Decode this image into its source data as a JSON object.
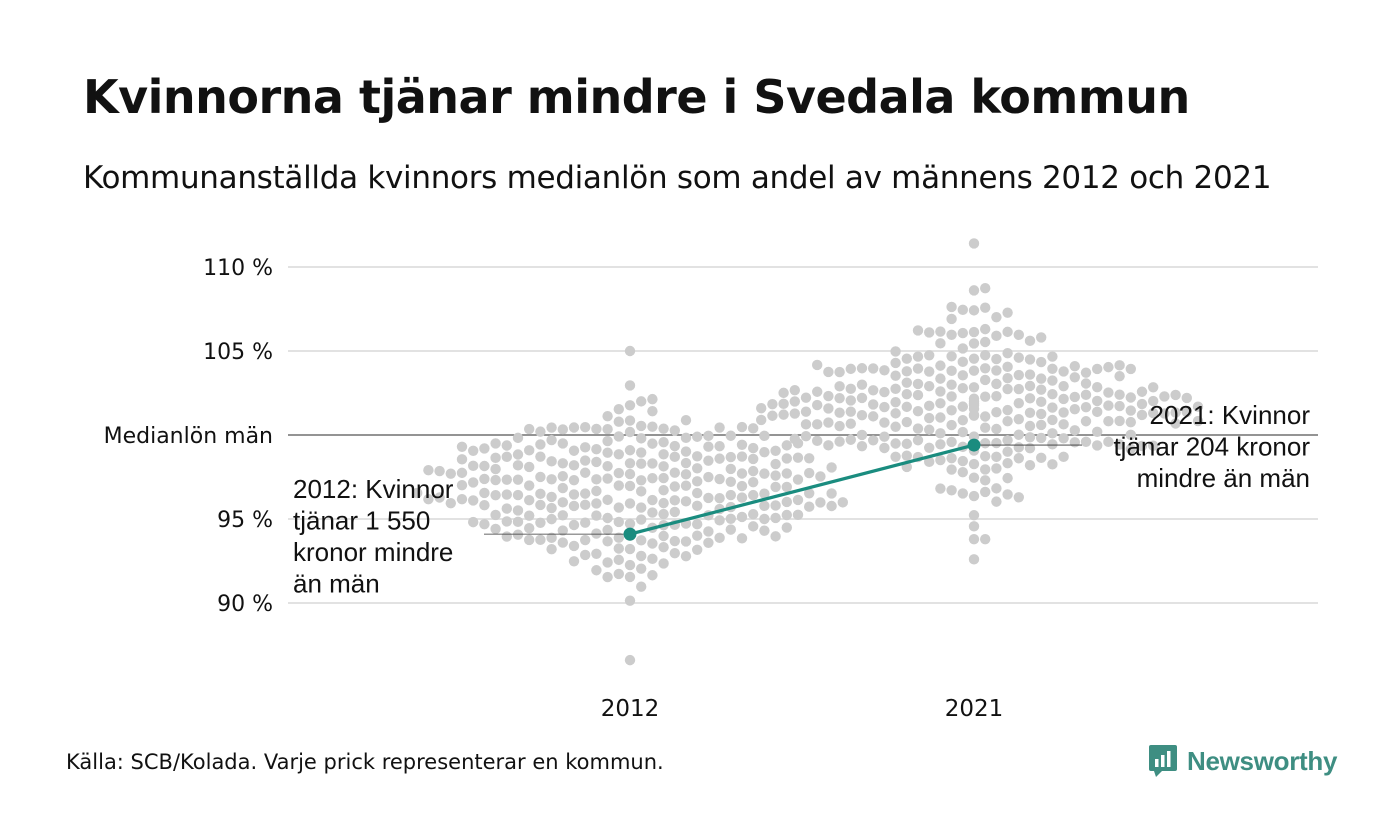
{
  "title": "Kvinnorna tjänar mindre i Svedala kommun",
  "subtitle": "Kommunanställda kvinnors medianlön som andel av männens 2012 och 2021",
  "source": "Källa: SCB/Kolada. Varje prick representerar en kommun.",
  "brand": {
    "name": "Newsworthy",
    "icon": "newsworthy-logo-icon"
  },
  "colors": {
    "dots": "#cccccc",
    "highlight": "#1a8c7f",
    "grid": "#e2e2e2",
    "baseline": "#555555",
    "text": "#111111"
  },
  "chart_data": {
    "type": "scatter",
    "categories": [
      "2012",
      "2021"
    ],
    "yticks": [
      {
        "value": 110,
        "label": "110 %"
      },
      {
        "value": 105,
        "label": "105 %"
      },
      {
        "value": 100,
        "label": "Medianlön män"
      },
      {
        "value": 95,
        "label": "95 %"
      },
      {
        "value": 90,
        "label": "90 %"
      }
    ],
    "ylim": [
      86,
      112
    ],
    "grid": true,
    "reference_line": {
      "value": 100,
      "label": "Medianlön män"
    },
    "distribution": [
      {
        "category": "2012",
        "min": 86.6,
        "max": 105.0,
        "center": 96.7,
        "spread": 2.5
      },
      {
        "category": "2021",
        "min": 92.6,
        "max": 111.4,
        "center": 101.8,
        "spread": 2.5
      }
    ],
    "highlight": {
      "name": "Svedala",
      "values": [
        {
          "category": "2012",
          "value": 94.1
        },
        {
          "category": "2021",
          "value": 99.4
        }
      ]
    },
    "annotations": [
      {
        "category": "2012",
        "lines": [
          "2012: Kvinnor",
          "tjänar 1 550",
          "kronor mindre",
          "än män"
        ]
      },
      {
        "category": "2021",
        "lines": [
          "2021: Kvinnor",
          "tjänar 204 kronor",
          "mindre än män"
        ]
      }
    ]
  }
}
